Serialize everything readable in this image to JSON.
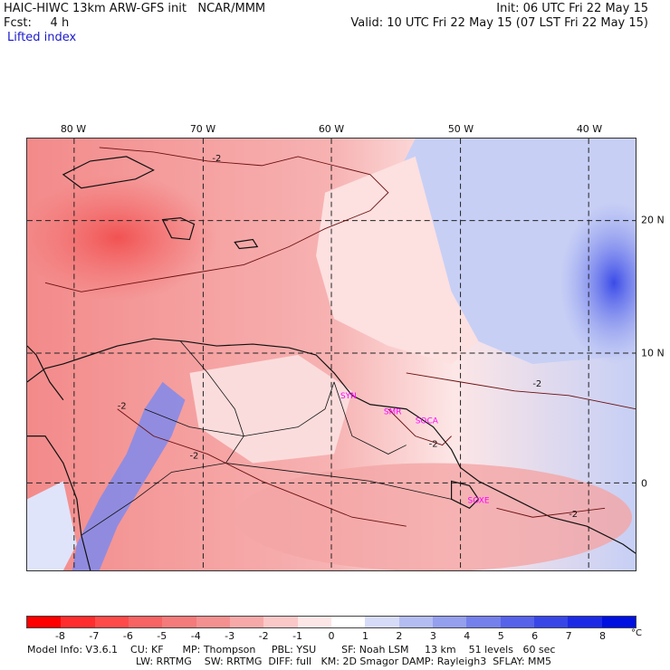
{
  "header": {
    "title": "HAIC-HIWC 13km ARW-GFS init   NCAR/MMM",
    "forecast": "Fcst:     4 h",
    "field": "Lifted index",
    "init": "Init: 06 UTC Fri 22 May 15",
    "valid": "Valid: 10 UTC Fri 22 May 15 (07 LST Fri 22 May 15)"
  },
  "map": {
    "longitude_labels": [
      "80 W",
      "70 W",
      "60 W",
      "50 W",
      "40 W"
    ],
    "latitude_labels": [
      "20 N",
      "10 N",
      "0"
    ],
    "contour_label": "-2",
    "cities": [
      "SYN",
      "SMR",
      "SOCA",
      "SOXE"
    ],
    "colors": {
      "strong_unstable": "#ff3b3b",
      "unstable": "#f58888",
      "neutral": "#fde4e4",
      "stable": "#c9d2f5",
      "strong_stable": "#3b4be8"
    }
  },
  "colorbar": {
    "labels": [
      "-8",
      "-7",
      "-6",
      "-5",
      "-4",
      "-3",
      "-2",
      "-1",
      "0",
      "1",
      "2",
      "3",
      "4",
      "5",
      "6",
      "7",
      "8"
    ],
    "unit": "°C",
    "colors": [
      "#ff0000",
      "#ff2d2d",
      "#ff4a4a",
      "#f86363",
      "#f57a7a",
      "#f59090",
      "#f7a9a9",
      "#fbc8c8",
      "#fde6e6",
      "#ffffff",
      "#d6dcf7",
      "#b4bdf2",
      "#949fee",
      "#7480ec",
      "#5662ea",
      "#3846e8",
      "#1c2ae6",
      "#0010e0"
    ]
  },
  "model_info": {
    "line1": "Model Info: V3.6.1    CU: KF      MP: Thompson     PBL: YSU        SF: Noah LSM     13 km    51 levels   60 sec",
    "line2": "LW: RRTMG    SW: RRTMG  DIFF: full   KM: 2D Smagor DAMP: Rayleigh3  SFLAY: MM5"
  }
}
